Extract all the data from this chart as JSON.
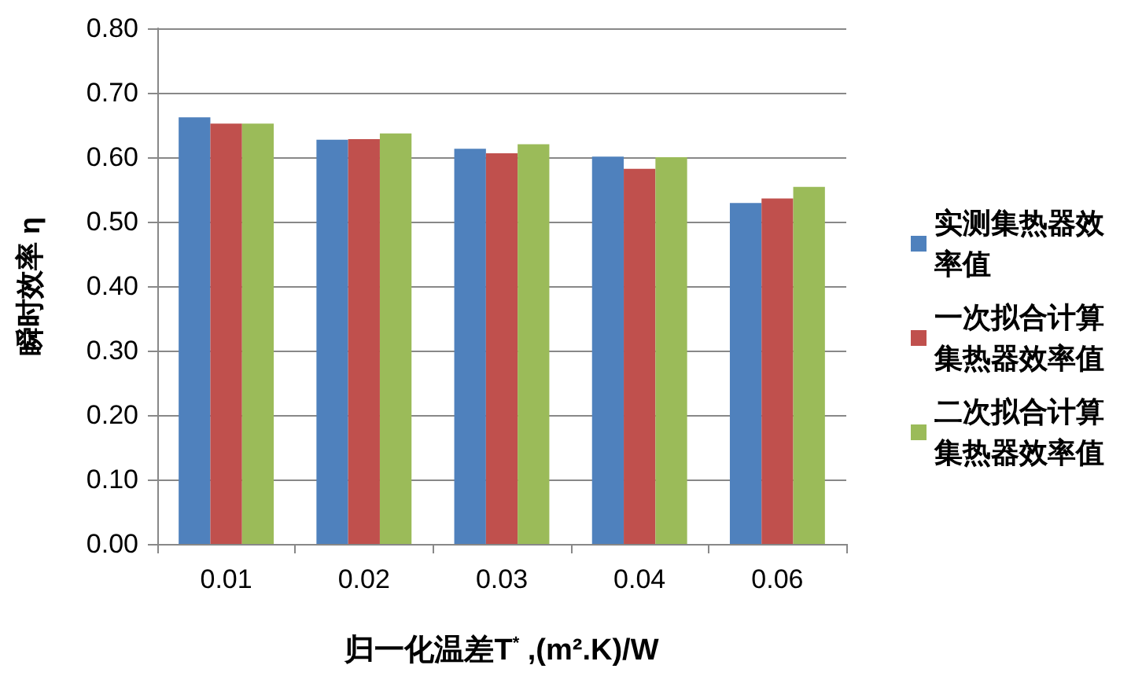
{
  "chart_data": {
    "type": "bar",
    "categories": [
      "0.01",
      "0.02",
      "0.03",
      "0.04",
      "0.06"
    ],
    "series": [
      {
        "name": "实测集热器效率值",
        "color": "#4f81bd",
        "values": [
          0.662,
          0.627,
          0.613,
          0.601,
          0.529
        ]
      },
      {
        "name": "一次拟合计算集热器效率值",
        "color": "#c0504d",
        "values": [
          0.652,
          0.628,
          0.606,
          0.582,
          0.536
        ]
      },
      {
        "name": "二次拟合计算集热器效率值",
        "color": "#9bbb59",
        "values": [
          0.652,
          0.637,
          0.62,
          0.6,
          0.554
        ]
      }
    ],
    "xlabel": "归一化温差T$^{*}$ ,(m².K)/W",
    "ylabel": "瞬时效率 η",
    "ylim": [
      0,
      0.8
    ],
    "yticks": [
      {
        "value": 0,
        "label": "0.00"
      },
      {
        "value": 0.1,
        "label": "0.10"
      },
      {
        "value": 0.2,
        "label": "0.20"
      },
      {
        "value": 0.3,
        "label": "0.30"
      },
      {
        "value": 0.4,
        "label": "0.40"
      },
      {
        "value": 0.5,
        "label": "0.50"
      },
      {
        "value": 0.6,
        "label": "0.60"
      },
      {
        "value": 0.7,
        "label": "0.70"
      },
      {
        "value": 0.8,
        "label": "0.80"
      }
    ],
    "grid": "y",
    "legend": "right"
  }
}
